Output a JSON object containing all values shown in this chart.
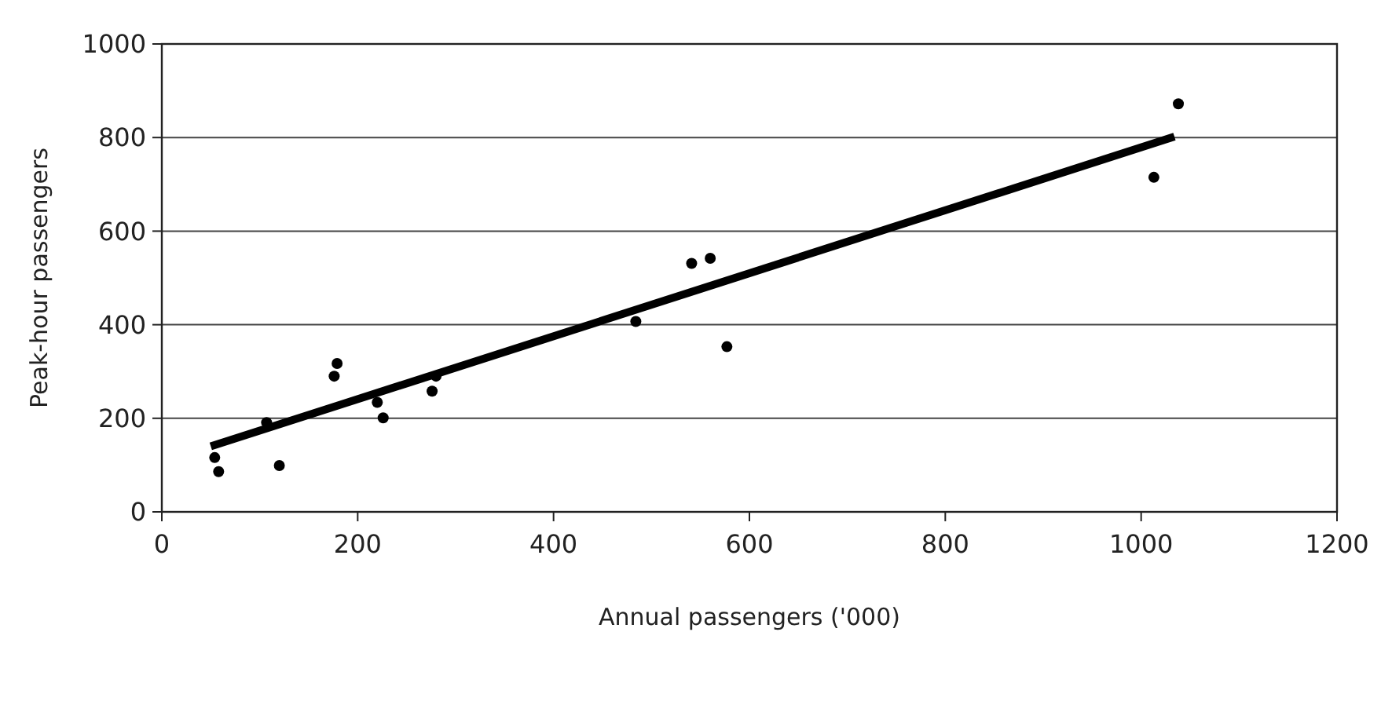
{
  "chart_data": {
    "type": "scatter",
    "xlabel": "Annual passengers ('000)",
    "ylabel": "Peak-hour passengers",
    "xlim": [
      0,
      1200
    ],
    "xticks": [
      0,
      200,
      400,
      600,
      800,
      1000,
      1200
    ],
    "ylim": [
      0,
      1000
    ],
    "yticks": [
      0,
      200,
      400,
      600,
      800,
      1000
    ],
    "grid": "y",
    "marker": "circle",
    "series": [
      {
        "type": "line",
        "color": "#000000",
        "marker": "none",
        "x": [
          50,
          1034
        ],
        "values": [
          140,
          802
        ]
      },
      {
        "color": "#000000",
        "x": [
          54,
          58,
          107,
          120,
          176,
          179,
          220,
          226,
          276,
          280,
          484,
          541,
          560,
          577,
          1013,
          1038
        ],
        "values": [
          116,
          86,
          191,
          99,
          290,
          317,
          234,
          201,
          258,
          290,
          407,
          531,
          542,
          353,
          715,
          872
        ]
      }
    ]
  }
}
